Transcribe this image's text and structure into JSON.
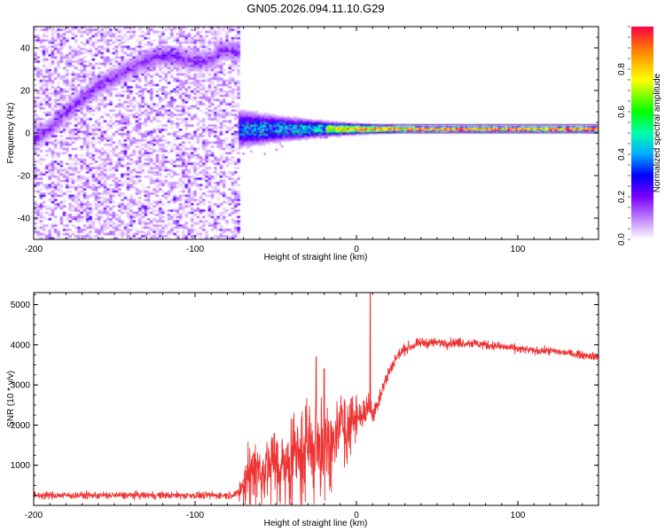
{
  "title": "GN05.2026.094.11.10.G29",
  "chart_data": [
    {
      "type": "heatmap",
      "name": "spectrogram",
      "xlabel": "Height of straight line (km)",
      "ylabel": "Frequency (Hz)",
      "xlim": [
        -200,
        150
      ],
      "ylim": [
        -50,
        50
      ],
      "xticks": [
        -200,
        -100,
        0,
        100
      ],
      "yticks": [
        -40,
        -20,
        0,
        20,
        40
      ],
      "xtick_labels": [
        "-200",
        "-100",
        "0",
        "100"
      ],
      "ytick_labels": [
        "-40",
        "-20",
        "0",
        "20",
        "40"
      ],
      "colorbar": {
        "label": "Normalized spectral amplitude",
        "range": [
          0,
          1
        ],
        "ticks": [
          0.0,
          0.2,
          0.4,
          0.6,
          0.8
        ],
        "tick_labels": [
          "0.0",
          "0.2",
          "0.4",
          "0.6",
          "0.8"
        ]
      },
      "features": [
        {
          "name": "diffuse-noise-region",
          "x_range": [
            -200,
            -73
          ],
          "amplitude": 0.08
        },
        {
          "name": "rising-ridge",
          "points": [
            [
              -200,
              -3
            ],
            [
              -190,
              2
            ],
            [
              -180,
              10
            ],
            [
              -170,
              16
            ],
            [
              -160,
              22
            ],
            [
              -150,
              26
            ],
            [
              -140,
              30
            ],
            [
              -130,
              34
            ],
            [
              -120,
              36
            ],
            [
              -110,
              35
            ],
            [
              -100,
              33
            ],
            [
              -90,
              34
            ],
            [
              -85,
              38
            ]
          ],
          "amplitude": 0.2
        },
        {
          "name": "carrier-line",
          "x_range": [
            -73,
            150
          ],
          "frequency": 1.5,
          "amplitude_range": [
            0.4,
            0.95
          ]
        }
      ]
    },
    {
      "type": "line",
      "name": "snr",
      "xlabel": "Height of straight line (km)",
      "ylabel": "SNR (10 * v/v)",
      "xlim": [
        -200,
        150
      ],
      "ylim": [
        0,
        5300
      ],
      "xticks": [
        -200,
        -100,
        0,
        100
      ],
      "yticks": [
        1000,
        2000,
        3000,
        4000,
        5000
      ],
      "xtick_labels": [
        "-200",
        "-100",
        "0",
        "100"
      ],
      "ytick_labels": [
        "1000",
        "2000",
        "3000",
        "4000",
        "5000"
      ],
      "color": "#ee3333",
      "series": [
        {
          "name": "SNR",
          "x": [
            -200,
            -150,
            -100,
            -80,
            -73,
            -68,
            -65,
            -60,
            -55,
            -50,
            -45,
            -40,
            -35,
            -30,
            -25,
            -20,
            -15,
            -10,
            -5,
            0,
            5,
            8,
            10,
            15,
            20,
            25,
            30,
            40,
            50,
            60,
            70,
            80,
            90,
            100,
            110,
            120,
            130,
            140,
            150
          ],
          "values": [
            250,
            250,
            250,
            250,
            300,
            800,
            1100,
            900,
            1000,
            1100,
            900,
            1200,
            1400,
            1600,
            1500,
            1800,
            1600,
            2000,
            2000,
            2200,
            2300,
            2500,
            2200,
            2800,
            3300,
            3700,
            3900,
            4050,
            4050,
            4050,
            4050,
            4000,
            3950,
            3900,
            3850,
            3850,
            3800,
            3750,
            3700
          ],
          "spread": [
            150,
            150,
            150,
            150,
            150,
            800,
            900,
            900,
            900,
            900,
            900,
            1200,
            1300,
            1400,
            1300,
            1400,
            1200,
            900,
            700,
            700,
            600,
            500,
            500,
            400,
            300,
            250,
            220,
            200,
            200,
            200,
            200,
            200,
            180,
            180,
            160,
            160,
            160,
            160,
            160
          ]
        }
      ],
      "spikes": [
        {
          "x": 8.5,
          "value": 5300
        },
        {
          "x": -25,
          "value": 3700
        },
        {
          "x": -20,
          "value": 3400
        }
      ]
    }
  ]
}
